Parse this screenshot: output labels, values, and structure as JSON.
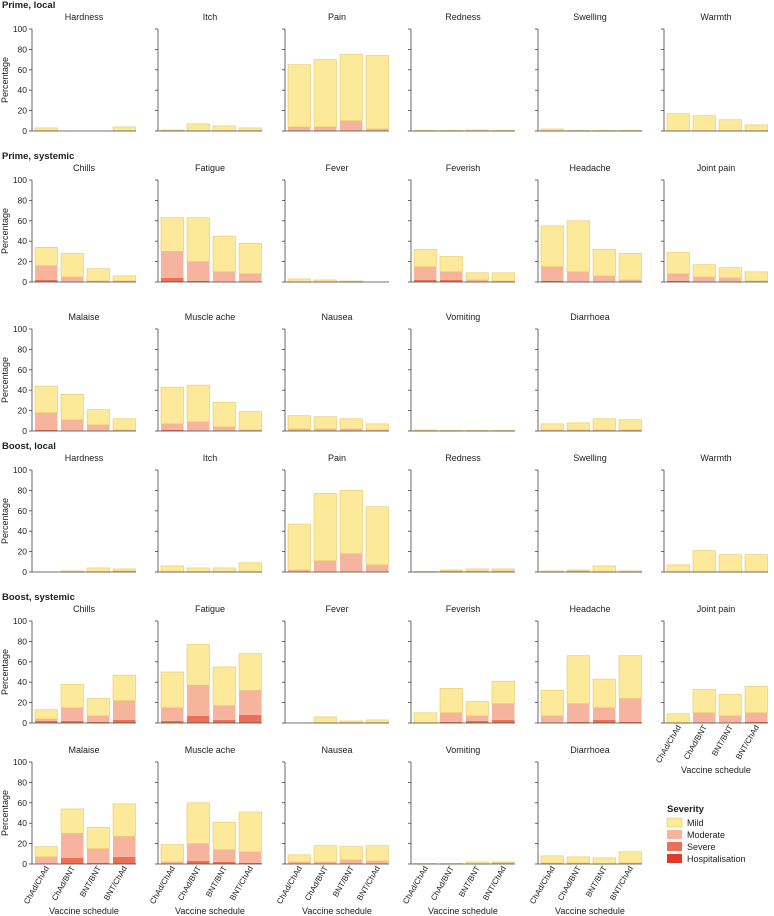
{
  "chart_data": {
    "type": "bar",
    "stacked": true,
    "ylabel": "Percentage",
    "xlabel": "Vaccine schedule",
    "ylim": [
      0,
      100
    ],
    "yticks": [
      0,
      20,
      40,
      60,
      80,
      100
    ],
    "categories": [
      "ChAd/ChAd",
      "ChAd/BNT",
      "BNT/BNT",
      "BNT/ChAd"
    ],
    "colors": {
      "Mild": "#fce99a",
      "Moderate": "#f6b49e",
      "Severe": "#ea7058",
      "Hospitalisation": "#de3a2c",
      "edge": "#e8c86a",
      "axis": "#444444"
    },
    "legend": {
      "title": "Severity",
      "items": [
        "Mild",
        "Moderate",
        "Severe",
        "Hospitalisation"
      ],
      "position": "bottom-right"
    },
    "sections": [
      {
        "title": "Prime, local",
        "panels": [
          {
            "title": "Hardness",
            "stacks": [
              [
                3,
                0,
                0,
                0
              ],
              [
                0,
                0,
                0,
                0
              ],
              [
                0,
                0,
                0,
                0
              ],
              [
                4,
                0,
                0,
                0
              ]
            ]
          },
          {
            "title": "Itch",
            "stacks": [
              [
                1,
                0,
                0,
                0
              ],
              [
                7,
                0,
                0,
                0
              ],
              [
                5,
                0,
                0,
                0
              ],
              [
                3,
                0,
                0,
                0
              ]
            ]
          },
          {
            "title": "Pain",
            "stacks": [
              [
                61,
                4,
                0,
                0
              ],
              [
                66,
                4,
                0,
                0
              ],
              [
                65,
                10,
                0,
                0
              ],
              [
                72,
                2,
                0,
                0
              ]
            ]
          },
          {
            "title": "Redness",
            "stacks": [
              [
                0.5,
                0,
                0,
                0
              ],
              [
                0.5,
                0,
                0,
                0
              ],
              [
                1,
                0,
                0,
                0
              ],
              [
                0.5,
                0,
                0,
                0
              ]
            ]
          },
          {
            "title": "Swelling",
            "stacks": [
              [
                2,
                0,
                0,
                0
              ],
              [
                0.5,
                0,
                0,
                0
              ],
              [
                0.5,
                0,
                0,
                0
              ],
              [
                0.5,
                0,
                0,
                0
              ]
            ]
          },
          {
            "title": "Warmth",
            "stacks": [
              [
                17,
                0,
                0,
                0
              ],
              [
                15,
                0,
                0,
                0
              ],
              [
                11,
                0,
                0,
                0
              ],
              [
                6,
                0,
                0,
                0
              ]
            ]
          }
        ]
      },
      {
        "title": "Prime, systemic",
        "panels": [
          {
            "title": "Chills",
            "stacks": [
              [
                18,
                14,
                2,
                0
              ],
              [
                23,
                5,
                0,
                0
              ],
              [
                12,
                1,
                0,
                0
              ],
              [
                5,
                1,
                0,
                0
              ]
            ]
          },
          {
            "title": "Fatigue",
            "stacks": [
              [
                33,
                26,
                4,
                0
              ],
              [
                43,
                19,
                1,
                0
              ],
              [
                35,
                10,
                0,
                0
              ],
              [
                30,
                8,
                0,
                0
              ]
            ]
          },
          {
            "title": "Fever",
            "stacks": [
              [
                3,
                0,
                0,
                0
              ],
              [
                2,
                0,
                0,
                0
              ],
              [
                1,
                0,
                0,
                0
              ],
              [
                0,
                0,
                0,
                0
              ]
            ]
          },
          {
            "title": "Feverish",
            "stacks": [
              [
                17,
                13,
                2,
                0
              ],
              [
                15,
                8,
                2,
                0
              ],
              [
                7,
                2,
                0,
                0
              ],
              [
                8,
                1,
                0,
                0
              ]
            ]
          },
          {
            "title": "Headache",
            "stacks": [
              [
                40,
                14,
                1,
                0
              ],
              [
                50,
                10,
                0,
                0
              ],
              [
                26,
                6,
                0,
                0
              ],
              [
                26,
                2,
                0,
                0
              ]
            ]
          },
          {
            "title": "Joint pain",
            "stacks": [
              [
                21,
                7,
                1,
                0
              ],
              [
                12,
                5,
                0,
                0
              ],
              [
                10,
                4,
                0,
                0
              ],
              [
                9,
                1,
                0,
                0
              ]
            ]
          }
        ]
      },
      {
        "title": "",
        "panels": [
          {
            "title": "Malaise",
            "stacks": [
              [
                26,
                17,
                1,
                0
              ],
              [
                25,
                11,
                0,
                0
              ],
              [
                15,
                6,
                0,
                0
              ],
              [
                11,
                1,
                0,
                0
              ]
            ]
          },
          {
            "title": "Muscle ache",
            "stacks": [
              [
                36,
                6,
                1,
                0
              ],
              [
                36,
                9,
                0,
                0
              ],
              [
                24,
                4,
                0,
                0
              ],
              [
                18,
                1,
                0,
                0
              ]
            ]
          },
          {
            "title": "Nausea",
            "stacks": [
              [
                13,
                2,
                0,
                0
              ],
              [
                12,
                2,
                0,
                0
              ],
              [
                10,
                2,
                0,
                0
              ],
              [
                6,
                1,
                0,
                0
              ]
            ]
          },
          {
            "title": "Vomiting",
            "stacks": [
              [
                1,
                0,
                0,
                0
              ],
              [
                0.5,
                0,
                0,
                0
              ],
              [
                0.5,
                0,
                0,
                0
              ],
              [
                0.5,
                0,
                0,
                0
              ]
            ]
          },
          {
            "title": "Diarrhoea",
            "stacks": [
              [
                6,
                1,
                0,
                0
              ],
              [
                7,
                1,
                0,
                0
              ],
              [
                11,
                1,
                0,
                0
              ],
              [
                10,
                1,
                0,
                0
              ]
            ]
          }
        ]
      },
      {
        "title": "Boost, local",
        "panels": [
          {
            "title": "Hardness",
            "stacks": [
              [
                0,
                0,
                0,
                0
              ],
              [
                1,
                0,
                0,
                0
              ],
              [
                4,
                0,
                0,
                0
              ],
              [
                2,
                1,
                0,
                0
              ]
            ]
          },
          {
            "title": "Itch",
            "stacks": [
              [
                6,
                0,
                0,
                0
              ],
              [
                4,
                0,
                0,
                0
              ],
              [
                4,
                0,
                0,
                0
              ],
              [
                9,
                0,
                0,
                0
              ]
            ]
          },
          {
            "title": "Pain",
            "stacks": [
              [
                45,
                2,
                0,
                0
              ],
              [
                66,
                11,
                0,
                0
              ],
              [
                62,
                18,
                0,
                0
              ],
              [
                57,
                7,
                0,
                0
              ]
            ]
          },
          {
            "title": "Redness",
            "stacks": [
              [
                0.5,
                0,
                0,
                0
              ],
              [
                1,
                1,
                0,
                0
              ],
              [
                2,
                1,
                0,
                0
              ],
              [
                2,
                1,
                0,
                0
              ]
            ]
          },
          {
            "title": "Swelling",
            "stacks": [
              [
                1,
                0,
                0,
                0
              ],
              [
                1,
                1,
                0,
                0
              ],
              [
                6,
                0,
                0,
                0
              ],
              [
                1,
                0,
                0,
                0
              ]
            ]
          },
          {
            "title": "Warmth",
            "stacks": [
              [
                7,
                0,
                0,
                0
              ],
              [
                21,
                0,
                0,
                0
              ],
              [
                17,
                0,
                0,
                0
              ],
              [
                17,
                0,
                0,
                0
              ]
            ]
          }
        ]
      },
      {
        "title": "Boost, systemic",
        "panels": [
          {
            "title": "Chills",
            "stacks": [
              [
                9,
                2,
                2,
                0
              ],
              [
                23,
                13,
                2,
                0
              ],
              [
                17,
                6,
                1,
                0
              ],
              [
                25,
                19,
                3,
                0
              ]
            ]
          },
          {
            "title": "Fatigue",
            "stacks": [
              [
                35,
                13,
                2,
                0
              ],
              [
                40,
                30,
                7,
                0
              ],
              [
                38,
                14,
                3,
                0
              ],
              [
                36,
                24,
                8,
                0
              ]
            ]
          },
          {
            "title": "Fever",
            "stacks": [
              [
                0,
                0,
                0,
                0
              ],
              [
                6,
                0,
                0,
                0
              ],
              [
                2,
                0,
                0,
                0
              ],
              [
                3,
                0,
                0,
                0
              ]
            ]
          },
          {
            "title": "Feverish",
            "stacks": [
              [
                10,
                0,
                0,
                0
              ],
              [
                24,
                9,
                1,
                0
              ],
              [
                14,
                5,
                2,
                0
              ],
              [
                22,
                16,
                3,
                0
              ]
            ]
          },
          {
            "title": "Headache",
            "stacks": [
              [
                25,
                7,
                0,
                0
              ],
              [
                47,
                18,
                1,
                0
              ],
              [
                28,
                12,
                3,
                0
              ],
              [
                42,
                23,
                1,
                0
              ]
            ]
          },
          {
            "title": "Joint pain",
            "stacks": [
              [
                9,
                0,
                0,
                0
              ],
              [
                23,
                10,
                0,
                0
              ],
              [
                21,
                7,
                0,
                0
              ],
              [
                26,
                9,
                1,
                0
              ]
            ]
          }
        ]
      },
      {
        "title": "",
        "panels": [
          {
            "title": "Malaise",
            "stacks": [
              [
                10,
                7,
                0,
                0
              ],
              [
                24,
                24,
                6,
                0
              ],
              [
                21,
                14,
                1,
                0
              ],
              [
                32,
                20,
                7,
                0
              ]
            ]
          },
          {
            "title": "Muscle ache",
            "stacks": [
              [
                17,
                2,
                0,
                0
              ],
              [
                40,
                17,
                3,
                0
              ],
              [
                27,
                12,
                2,
                0
              ],
              [
                39,
                11,
                1,
                0
              ]
            ]
          },
          {
            "title": "Nausea",
            "stacks": [
              [
                7,
                2,
                0,
                0
              ],
              [
                16,
                2,
                0,
                0
              ],
              [
                13,
                4,
                0,
                0
              ],
              [
                15,
                3,
                0,
                0
              ]
            ]
          },
          {
            "title": "Vomiting",
            "stacks": [
              [
                0.5,
                0,
                0,
                0
              ],
              [
                0.5,
                0,
                0,
                0
              ],
              [
                2,
                0,
                0,
                0
              ],
              [
                1,
                1,
                0,
                0
              ]
            ]
          },
          {
            "title": "Diarrhoea",
            "stacks": [
              [
                7,
                1,
                0,
                0
              ],
              [
                6,
                1,
                0,
                0
              ],
              [
                6,
                0,
                0,
                0
              ],
              [
                11,
                1,
                0,
                0
              ]
            ]
          }
        ]
      }
    ]
  }
}
